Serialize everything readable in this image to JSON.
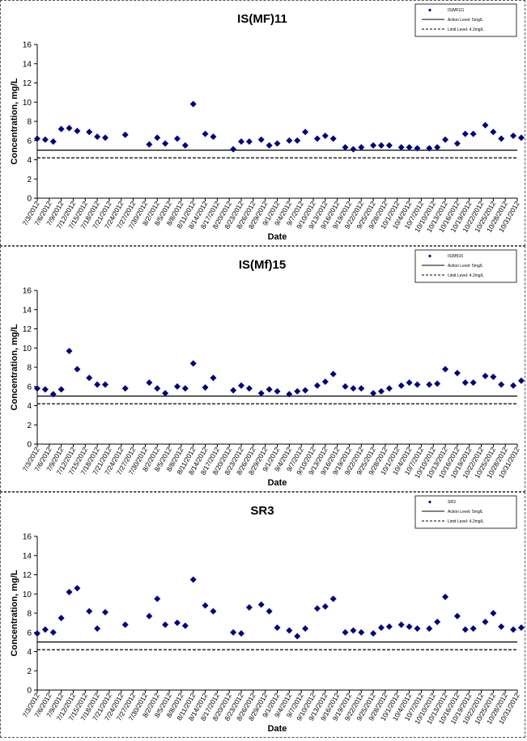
{
  "x_ticks": [
    "7/3/2012",
    "7/6/2012",
    "7/9/2012",
    "7/12/2012",
    "7/15/2012",
    "7/18/2012",
    "7/21/2012",
    "7/24/2012",
    "7/27/2012",
    "7/30/2012",
    "8/2/2012",
    "8/5/2012",
    "8/8/2012",
    "8/11/2012",
    "8/14/2012",
    "8/17/2012",
    "8/20/2012",
    "8/23/2012",
    "8/26/2012",
    "8/29/2012",
    "9/1/2012",
    "9/4/2012",
    "9/7/2012",
    "9/10/2012",
    "9/13/2012",
    "9/16/2012",
    "9/19/2012",
    "9/22/2012",
    "9/25/2012",
    "9/28/2012",
    "10/1/2012",
    "10/4/2012",
    "10/7/2012",
    "10/10/2012",
    "10/13/2012",
    "10/16/2012",
    "10/19/2012",
    "10/22/2012",
    "10/25/2012",
    "10/28/2012",
    "10/31/2012"
  ],
  "colors": {
    "marker": "#000080",
    "line": "#000000"
  },
  "chart_data": [
    {
      "type": "scatter",
      "title": "IS(MF)11",
      "xlabel": "Date",
      "ylabel": "Concentration, mg/L",
      "ylim": [
        0,
        16
      ],
      "yticks": [
        0,
        2,
        4,
        6,
        8,
        10,
        12,
        14,
        16
      ],
      "grid": false,
      "legend_position": "top-right",
      "legend": [
        "IS(MF)11",
        "Action Level: 5mg/L",
        "Limit Level: 4.2mg/L"
      ],
      "x": [
        "7/3/2012",
        "7/5/2012",
        "7/7/2012",
        "7/9/2012",
        "7/11/2012",
        "7/13/2012",
        "7/16/2012",
        "7/18/2012",
        "7/20/2012",
        "7/25/2012",
        "7/31/2012",
        "8/2/2012",
        "8/4/2012",
        "8/7/2012",
        "8/9/2012",
        "8/11/2012",
        "8/14/2012",
        "8/16/2012",
        "8/21/2012",
        "8/23/2012",
        "8/25/2012",
        "8/28/2012",
        "8/30/2012",
        "9/1/2012",
        "9/4/2012",
        "9/6/2012",
        "9/8/2012",
        "9/11/2012",
        "9/13/2012",
        "9/15/2012",
        "9/18/2012",
        "9/20/2012",
        "9/22/2012",
        "9/25/2012",
        "9/27/2012",
        "9/29/2012",
        "10/2/2012",
        "10/4/2012",
        "10/6/2012",
        "10/9/2012",
        "10/11/2012",
        "10/13/2012",
        "10/16/2012",
        "10/18/2012",
        "10/20/2012",
        "10/23/2012",
        "10/25/2012",
        "10/27/2012",
        "10/30/2012",
        "11/1/2012"
      ],
      "series": [
        {
          "values": [
            6.2,
            6.1,
            5.9,
            7.2,
            7.3,
            7.0,
            6.9,
            6.4,
            6.3,
            6.6,
            5.6,
            6.3,
            5.7,
            6.2,
            5.5,
            9.8,
            6.7,
            6.4,
            5.1,
            5.9,
            5.9,
            6.1,
            5.5,
            5.7,
            6.0,
            6.0,
            6.9,
            6.2,
            6.5,
            6.2,
            5.3,
            5.1,
            5.3,
            5.5,
            5.5,
            5.5,
            5.3,
            5.3,
            5.2,
            5.2,
            5.3,
            6.1,
            5.7,
            6.7,
            6.7,
            7.6,
            6.9,
            6.2,
            6.5,
            6.3
          ]
        },
        {
          "values": [
            5,
            5
          ]
        },
        {
          "values": [
            4.2,
            4.2
          ]
        }
      ]
    },
    {
      "type": "scatter",
      "title": "IS(Mf)15",
      "xlabel": "Date",
      "ylabel": "Concentration, mg/L",
      "ylim": [
        0,
        16
      ],
      "yticks": [
        0,
        2,
        4,
        6,
        8,
        10,
        12,
        14,
        16
      ],
      "grid": false,
      "legend_position": "top-right",
      "legend": [
        "IS(Mf)15",
        "Action Level: 5mg/L",
        "Limit Level: 4.2mg/L"
      ],
      "x": [
        "7/3/2012",
        "7/5/2012",
        "7/7/2012",
        "7/9/2012",
        "7/11/2012",
        "7/13/2012",
        "7/16/2012",
        "7/18/2012",
        "7/20/2012",
        "7/25/2012",
        "7/31/2012",
        "8/2/2012",
        "8/4/2012",
        "8/7/2012",
        "8/9/2012",
        "8/11/2012",
        "8/14/2012",
        "8/16/2012",
        "8/21/2012",
        "8/23/2012",
        "8/25/2012",
        "8/28/2012",
        "8/30/2012",
        "9/1/2012",
        "9/4/2012",
        "9/6/2012",
        "9/8/2012",
        "9/11/2012",
        "9/13/2012",
        "9/15/2012",
        "9/18/2012",
        "9/20/2012",
        "9/22/2012",
        "9/25/2012",
        "9/27/2012",
        "9/29/2012",
        "10/2/2012",
        "10/4/2012",
        "10/6/2012",
        "10/9/2012",
        "10/11/2012",
        "10/13/2012",
        "10/16/2012",
        "10/18/2012",
        "10/20/2012",
        "10/23/2012",
        "10/25/2012",
        "10/27/2012",
        "10/30/2012",
        "11/1/2012"
      ],
      "series": [
        {
          "values": [
            5.8,
            5.7,
            5.2,
            5.7,
            9.7,
            7.8,
            6.9,
            6.2,
            6.2,
            5.8,
            6.4,
            5.8,
            5.3,
            6.0,
            5.8,
            8.4,
            5.9,
            6.9,
            5.6,
            6.1,
            5.8,
            5.3,
            5.7,
            5.5,
            5.2,
            5.5,
            5.6,
            6.1,
            6.5,
            7.3,
            6.0,
            5.8,
            5.8,
            5.3,
            5.5,
            5.8,
            6.1,
            6.4,
            6.2,
            6.2,
            6.3,
            7.8,
            7.4,
            6.4,
            6.4,
            7.1,
            7.0,
            6.2,
            6.1,
            6.6
          ]
        },
        {
          "values": [
            5,
            5
          ]
        },
        {
          "values": [
            4.2,
            4.2
          ]
        }
      ]
    },
    {
      "type": "scatter",
      "title": "SR3",
      "xlabel": "Date",
      "ylabel": "Concentration, mg/L",
      "ylim": [
        0,
        16
      ],
      "yticks": [
        0,
        2,
        4,
        6,
        8,
        10,
        12,
        14,
        16
      ],
      "grid": false,
      "legend_position": "top-right",
      "legend": [
        "SR3",
        "Action Level: 5mg/L",
        "Limit Level: 4.2mg/L"
      ],
      "x": [
        "7/3/2012",
        "7/5/2012",
        "7/7/2012",
        "7/9/2012",
        "7/11/2012",
        "7/13/2012",
        "7/16/2012",
        "7/18/2012",
        "7/20/2012",
        "7/25/2012",
        "7/31/2012",
        "8/2/2012",
        "8/4/2012",
        "8/7/2012",
        "8/9/2012",
        "8/11/2012",
        "8/14/2012",
        "8/16/2012",
        "8/21/2012",
        "8/23/2012",
        "8/25/2012",
        "8/28/2012",
        "8/30/2012",
        "9/1/2012",
        "9/4/2012",
        "9/6/2012",
        "9/8/2012",
        "9/11/2012",
        "9/13/2012",
        "9/15/2012",
        "9/18/2012",
        "9/20/2012",
        "9/22/2012",
        "9/25/2012",
        "9/27/2012",
        "9/29/2012",
        "10/2/2012",
        "10/4/2012",
        "10/6/2012",
        "10/9/2012",
        "10/11/2012",
        "10/13/2012",
        "10/16/2012",
        "10/18/2012",
        "10/20/2012",
        "10/23/2012",
        "10/25/2012",
        "10/27/2012",
        "10/30/2012",
        "11/1/2012"
      ],
      "series": [
        {
          "values": [
            5.9,
            6.3,
            6.0,
            7.5,
            10.2,
            10.6,
            8.2,
            6.4,
            8.1,
            6.8,
            7.7,
            9.5,
            6.8,
            7.0,
            6.7,
            11.5,
            8.8,
            8.2,
            6.0,
            5.9,
            8.6,
            8.9,
            8.2,
            6.5,
            6.2,
            5.6,
            6.4,
            8.5,
            8.7,
            9.5,
            6.0,
            6.2,
            6.0,
            5.9,
            6.5,
            6.6,
            6.8,
            6.6,
            6.4,
            6.4,
            7.1,
            9.7,
            7.7,
            6.3,
            6.4,
            7.1,
            8.0,
            6.6,
            6.3,
            6.5
          ]
        },
        {
          "values": [
            5,
            5
          ]
        },
        {
          "values": [
            4.2,
            4.2
          ]
        }
      ]
    }
  ]
}
